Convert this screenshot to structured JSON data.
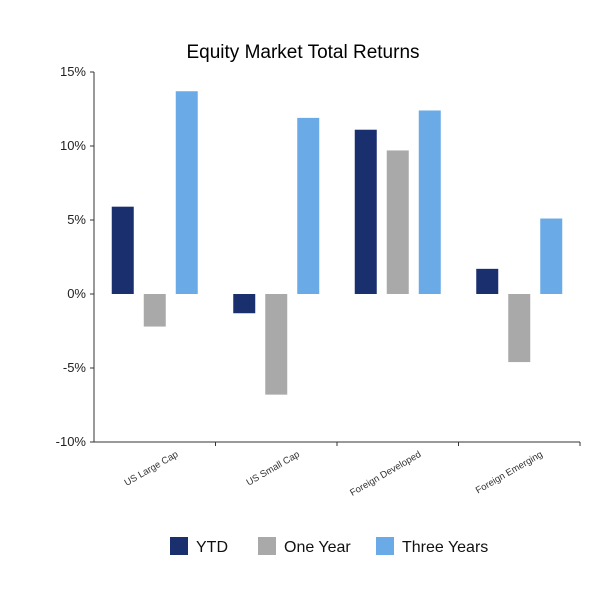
{
  "chart_data": {
    "type": "bar",
    "title": "Equity Market Total Returns",
    "xlabel": "",
    "ylabel": "",
    "ylim": [
      -10,
      15
    ],
    "yticks": [
      15,
      10,
      5,
      0,
      -5,
      -10
    ],
    "ytick_labels": [
      "15%",
      "10%",
      "5%",
      "0%",
      "-5%",
      "-10%"
    ],
    "categories": [
      "US Large Cap",
      "US Small Cap",
      "Foreign Developed",
      "Foreign Emerging"
    ],
    "series": [
      {
        "name": "YTD",
        "color": "#1a2f6e",
        "values": [
          5.9,
          -1.3,
          11.1,
          1.7
        ]
      },
      {
        "name": "One Year",
        "color": "#a9a9a9",
        "values": [
          -2.2,
          -6.8,
          9.7,
          -4.6
        ]
      },
      {
        "name": "Three Years",
        "color": "#6aaae6",
        "values": [
          13.7,
          11.9,
          12.4,
          5.1
        ]
      }
    ],
    "grid": false,
    "legend_position": "bottom"
  }
}
